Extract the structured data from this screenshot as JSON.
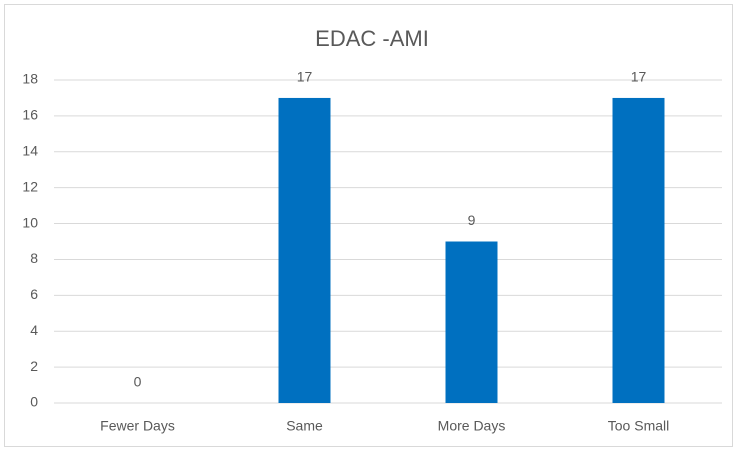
{
  "chart_data": {
    "type": "bar",
    "title": "EDAC -AMI",
    "categories": [
      "Fewer Days",
      "Same",
      "More Days",
      "Too Small"
    ],
    "values": [
      0,
      17,
      9,
      17
    ],
    "color": "#0070c0",
    "ylim": [
      0,
      18
    ],
    "yticks": [
      0,
      2,
      4,
      6,
      8,
      10,
      12,
      14,
      16,
      18
    ],
    "grid": true,
    "data_labels": true
  }
}
